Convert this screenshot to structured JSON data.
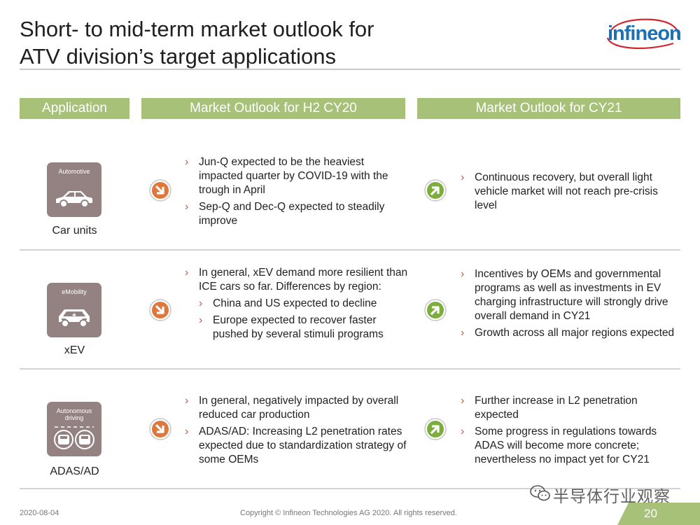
{
  "title": {
    "line1": "Short- to mid-term market outlook for",
    "line2": "ATV division’s target applications"
  },
  "logo": {
    "text": "infineon",
    "color": "#1e6fb1",
    "swoosh_color": "#d7252c"
  },
  "headers": {
    "application": "Application",
    "h2": "Market Outlook for H2 CY20",
    "cy21": "Market Outlook for CY21"
  },
  "rows": [
    {
      "icon_label": "Automotive",
      "icon": "car-icon",
      "name": "Car units",
      "h2_trend": "down-right-arrow-icon",
      "h2_bullets": [
        "Jun-Q expected to be the heaviest impacted quarter by COVID-19 with the trough in April",
        "Sep-Q and Dec-Q expected to steadily improve"
      ],
      "cy21_trend": "up-right-arrow-icon",
      "cy21_bullets": [
        "Continuous recovery, but overall light vehicle market will not reach pre-crisis level"
      ]
    },
    {
      "icon_label": "eMobility",
      "icon": "electric-car-icon",
      "name": "xEV",
      "h2_trend": "down-right-arrow-icon",
      "h2_bullets": [
        "In general, xEV demand more resilient than ICE cars so far. Differences by region:"
      ],
      "h2_sub_bullets": [
        "China and US expected to decline",
        "Europe expected to recover faster pushed by several stimuli programs"
      ],
      "cy21_trend": "up-right-arrow-icon",
      "cy21_bullets": [
        "Incentives by OEMs and governmental programs as well as investments in EV charging infrastructure will strongly drive overall demand in CY21",
        "Growth across all major regions expected"
      ]
    },
    {
      "icon_label": "Autonomous driving",
      "icon": "autonomous-car-icon",
      "name": "ADAS/AD",
      "h2_trend": "down-right-arrow-icon",
      "h2_bullets": [
        "In general, negatively impacted by overall reduced car production",
        "ADAS/AD: Increasing L2 penetration rates expected due to standardization strategy of some OEMs"
      ],
      "cy21_trend": "up-right-arrow-icon",
      "cy21_bullets": [
        "Further increase in L2 penetration expected",
        "Some progress in regulations towards ADAS will become more concrete; nevertheless no impact yet for CY21"
      ]
    }
  ],
  "footer": {
    "date": "2020-08-04",
    "copyright": "Copyright © Infineon Technologies AG 2020. All rights reserved.",
    "page": "20"
  },
  "watermark": "半导体行业观察",
  "colors": {
    "header_green": "#a7c179",
    "arrow_orange": "#e0763a",
    "arrow_green": "#7cae3e",
    "icon_bg": "#948282",
    "bullet_marker": "#c15a3c"
  }
}
